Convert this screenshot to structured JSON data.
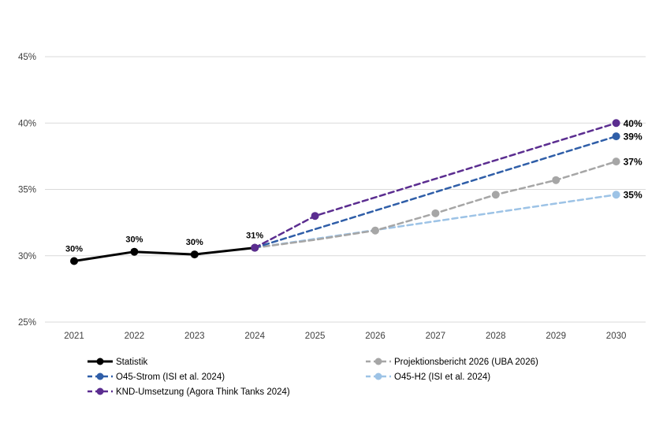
{
  "chart_data": {
    "type": "line",
    "title": "",
    "x_label": "",
    "y_label": "",
    "x_ticks": [
      "2021",
      "2022",
      "2023",
      "2024",
      "2025",
      "2026",
      "2027",
      "2028",
      "2029",
      "2030"
    ],
    "y_axis": {
      "min": 25,
      "max": 45,
      "step": 5,
      "tick_labels": [
        "25%",
        "30%",
        "35%",
        "40%",
        "45%"
      ],
      "grid": true
    },
    "series": [
      {
        "name": "O45-H2 (ISI et al. 2024)",
        "color": "#9DC3E6",
        "dashed": true,
        "end_label": "35%",
        "points": [
          {
            "x": 2024,
            "y": 30.6,
            "marker": false
          },
          {
            "x": 2030,
            "y": 34.6,
            "marker": true
          }
        ]
      },
      {
        "name": "Projektionsbericht 2026 (UBA 2026)",
        "color": "#A6A6A6",
        "dashed": true,
        "end_label": "37%",
        "points": [
          {
            "x": 2024,
            "y": 30.6,
            "marker": false
          },
          {
            "x": 2025,
            "y": 31.2,
            "marker": false
          },
          {
            "x": 2026,
            "y": 31.9,
            "marker": true
          },
          {
            "x": 2027,
            "y": 33.2,
            "marker": true
          },
          {
            "x": 2028,
            "y": 34.6,
            "marker": true
          },
          {
            "x": 2029,
            "y": 35.7,
            "marker": true
          },
          {
            "x": 2030,
            "y": 37.1,
            "marker": true
          }
        ]
      },
      {
        "name": "O45-Strom (ISI et al. 2024)",
        "color": "#2F5EA8",
        "dashed": true,
        "end_label": "39%",
        "points": [
          {
            "x": 2024,
            "y": 30.6,
            "marker": false
          },
          {
            "x": 2030,
            "y": 39.0,
            "marker": true
          }
        ]
      },
      {
        "name": "Statistik",
        "color": "#000000",
        "dashed": false,
        "end_label": "",
        "points": [
          {
            "x": 2021,
            "y": 29.6,
            "marker": true,
            "label": "30%"
          },
          {
            "x": 2022,
            "y": 30.3,
            "marker": true,
            "label": "30%"
          },
          {
            "x": 2023,
            "y": 30.1,
            "marker": true,
            "label": "30%"
          },
          {
            "x": 2024,
            "y": 30.6,
            "marker": true,
            "label": "31%"
          }
        ]
      },
      {
        "name": "KND-Umsetzung (Agora Think Tanks 2024)",
        "color": "#5B2D90",
        "dashed": true,
        "end_label": "40%",
        "points": [
          {
            "x": 2024,
            "y": 30.6,
            "marker": true
          },
          {
            "x": 2025,
            "y": 33.0,
            "marker": true
          },
          {
            "x": 2030,
            "y": 40.0,
            "marker": true
          }
        ]
      }
    ],
    "legend": {
      "position": "bottom",
      "columns": [
        [
          "Statistik",
          "O45-Strom (ISI et al. 2024)",
          "KND-Umsetzung (Agora Think Tanks 2024)"
        ],
        [
          "Projektionsbericht 2026 (UBA 2026)",
          "O45-H2 (ISI et al. 2024)"
        ]
      ]
    }
  },
  "colors": {
    "background": "#FFFFFF",
    "gridline": "#D9D9D9",
    "tick_text": "#404040",
    "point_label_text": "#000000",
    "legend_text": "#000000"
  }
}
